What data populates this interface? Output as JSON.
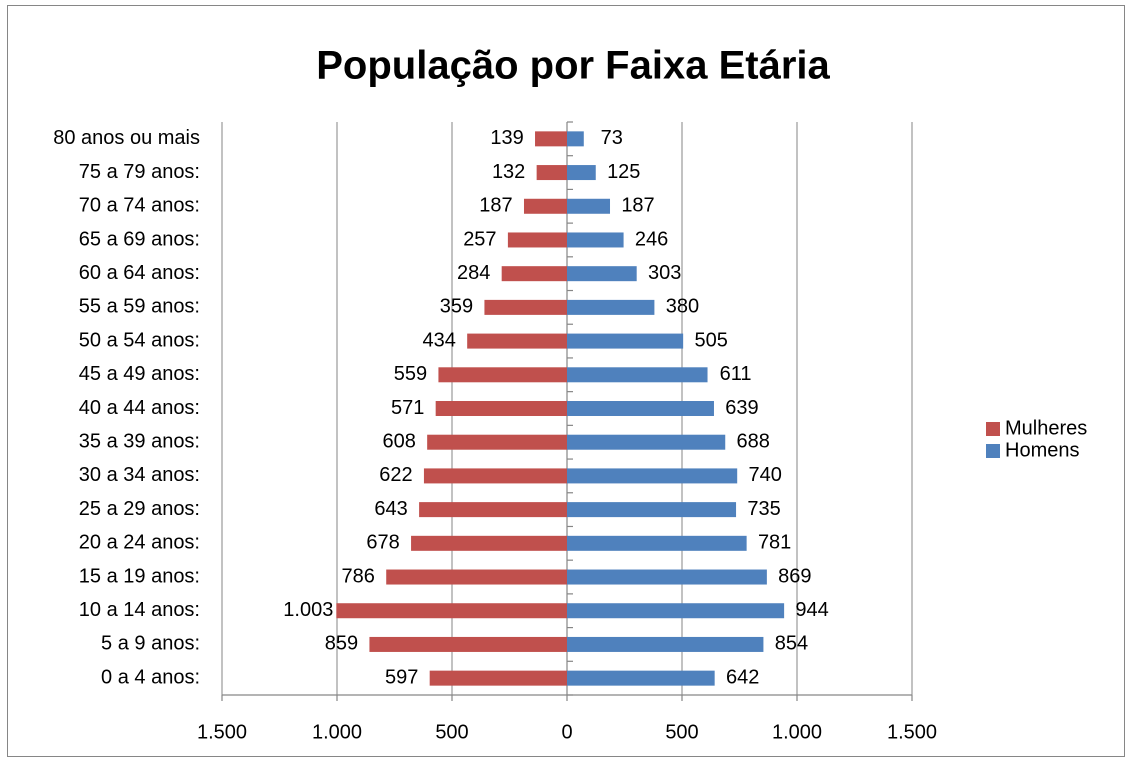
{
  "chart_data": {
    "type": "bar",
    "orientation": "horizontal",
    "title": "População por Faixa Etária",
    "categories": [
      "0 a 4 anos:",
      "5 a 9 anos:",
      "10 a 14 anos:",
      "15 a 19 anos:",
      "20 a 24 anos:",
      "25 a 29 anos:",
      "30 a 34 anos:",
      "35 a 39 anos:",
      "40 a 44 anos:",
      "45 a 49 anos:",
      "50 a 54 anos:",
      "55 a 59 anos:",
      "60 a 64 anos:",
      "65 a 69 anos:",
      "70 a 74 anos:",
      "75 a 79 anos:",
      "80 anos ou mais"
    ],
    "series": [
      {
        "name": "Mulheres",
        "color": "#c0504d",
        "values": [
          -597,
          -859,
          -1003,
          -786,
          -678,
          -643,
          -622,
          -608,
          -571,
          -559,
          -434,
          -359,
          -284,
          -257,
          -187,
          -132,
          -139
        ],
        "value_labels": [
          "597",
          "859",
          "1.003",
          "786",
          "678",
          "643",
          "622",
          "608",
          "571",
          "559",
          "434",
          "359",
          "284",
          "257",
          "187",
          "132",
          "139"
        ]
      },
      {
        "name": "Homens",
        "color": "#4f81bd",
        "values": [
          642,
          854,
          944,
          869,
          781,
          735,
          740,
          688,
          639,
          611,
          505,
          380,
          303,
          246,
          187,
          125,
          73
        ]
      }
    ],
    "xlim": [
      -1500,
      1500
    ],
    "xticks": [
      {
        "value": -1500,
        "label": "1.500"
      },
      {
        "value": -1000,
        "label": "1.000"
      },
      {
        "value": -500,
        "label": "500"
      },
      0,
      500,
      {
        "value": 1000,
        "label": "1.000"
      },
      {
        "value": 1500,
        "label": "1.500"
      }
    ],
    "grid": true,
    "legend": "right"
  }
}
